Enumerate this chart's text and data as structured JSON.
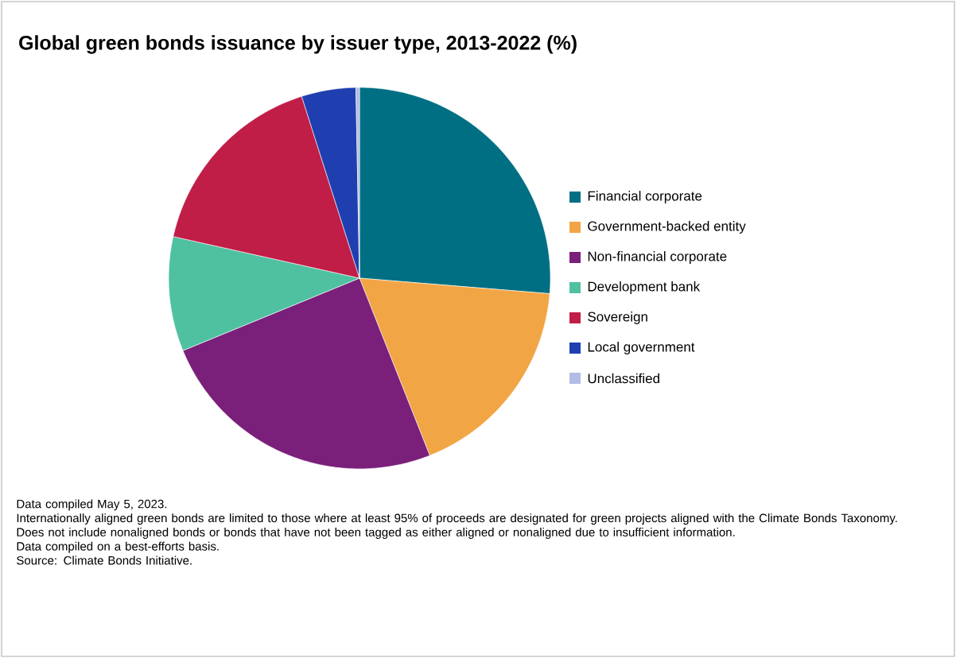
{
  "chart_data": {
    "type": "pie",
    "title": "Global green bonds issuance by issuer type, 2013-2022 (%)",
    "categories": [
      "Financial corporate",
      "Government-backed entity",
      "Non-financial corporate",
      "Development bank",
      "Sovereign",
      "Local government",
      "Unclassified"
    ],
    "values": [
      26.3,
      17.7,
      24.8,
      9.7,
      16.6,
      4.6,
      0.3
    ],
    "colors": [
      "#006f83",
      "#f2a545",
      "#7a1f7a",
      "#4fc1a0",
      "#c01d47",
      "#1f3fb0",
      "#b3bce6"
    ],
    "legend": "right",
    "annotations": [
      "Data compiled May 5, 2023.",
      "Internationally aligned green bonds are limited to those where at least 95% of proceeds are designated for green projects aligned with the Climate Bonds Taxonomy.",
      "Does not include nonaligned bonds or bonds that have not been tagged as either aligned or nonaligned due to insufficient information.",
      "Data compiled on a best-efforts basis.",
      "Source: Climate Bonds Initiative."
    ]
  }
}
